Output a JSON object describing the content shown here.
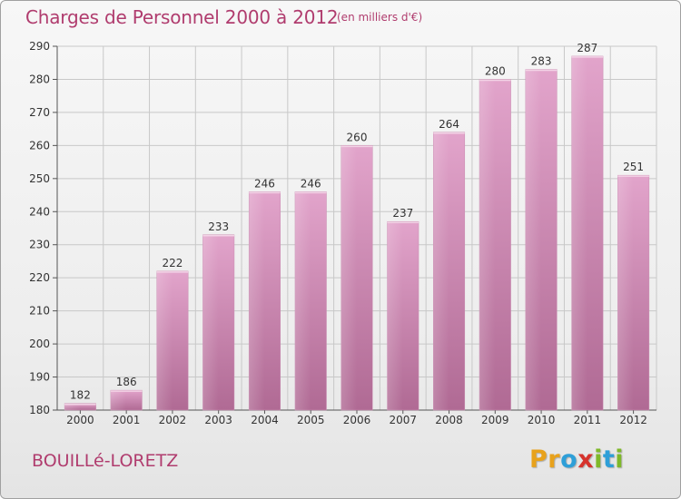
{
  "title": "Charges de Personnel 2000 à 2012",
  "subtitle": "(en milliers d'€)",
  "location": "BOUILLé-LORETZ",
  "logo": {
    "text": "Proxiti",
    "letters": [
      {
        "ch": "P",
        "color": "#e8a21c"
      },
      {
        "ch": "r",
        "color": "#e8a21c"
      },
      {
        "ch": "o",
        "color": "#2e9fd8"
      },
      {
        "ch": "x",
        "color": "#d6322c"
      },
      {
        "ch": "i",
        "color": "#7fb82a"
      },
      {
        "ch": "t",
        "color": "#2e9fd8"
      },
      {
        "ch": "i",
        "color": "#7fb82a"
      }
    ]
  },
  "colors": {
    "title": "#b03c6e",
    "bar_top": "#e2a4cb",
    "bar_bottom": "#b06a94",
    "grid": "#c8c8c8",
    "axis_text": "#333333"
  },
  "chart_data": {
    "type": "bar",
    "categories": [
      "2000",
      "2001",
      "2002",
      "2003",
      "2004",
      "2005",
      "2006",
      "2007",
      "2008",
      "2009",
      "2010",
      "2011",
      "2012"
    ],
    "values": [
      182,
      186,
      222,
      233,
      246,
      246,
      260,
      237,
      264,
      280,
      283,
      287,
      251
    ],
    "data_labels": [
      "182",
      "186",
      "222",
      "233",
      "246",
      "246",
      "260",
      "237",
      "264",
      "280",
      "283",
      "287",
      "251"
    ],
    "ylim": [
      180,
      290
    ],
    "yticks": [
      180,
      190,
      200,
      210,
      220,
      230,
      240,
      250,
      260,
      270,
      280,
      290
    ],
    "grid": true,
    "xlabel": "",
    "ylabel": ""
  }
}
